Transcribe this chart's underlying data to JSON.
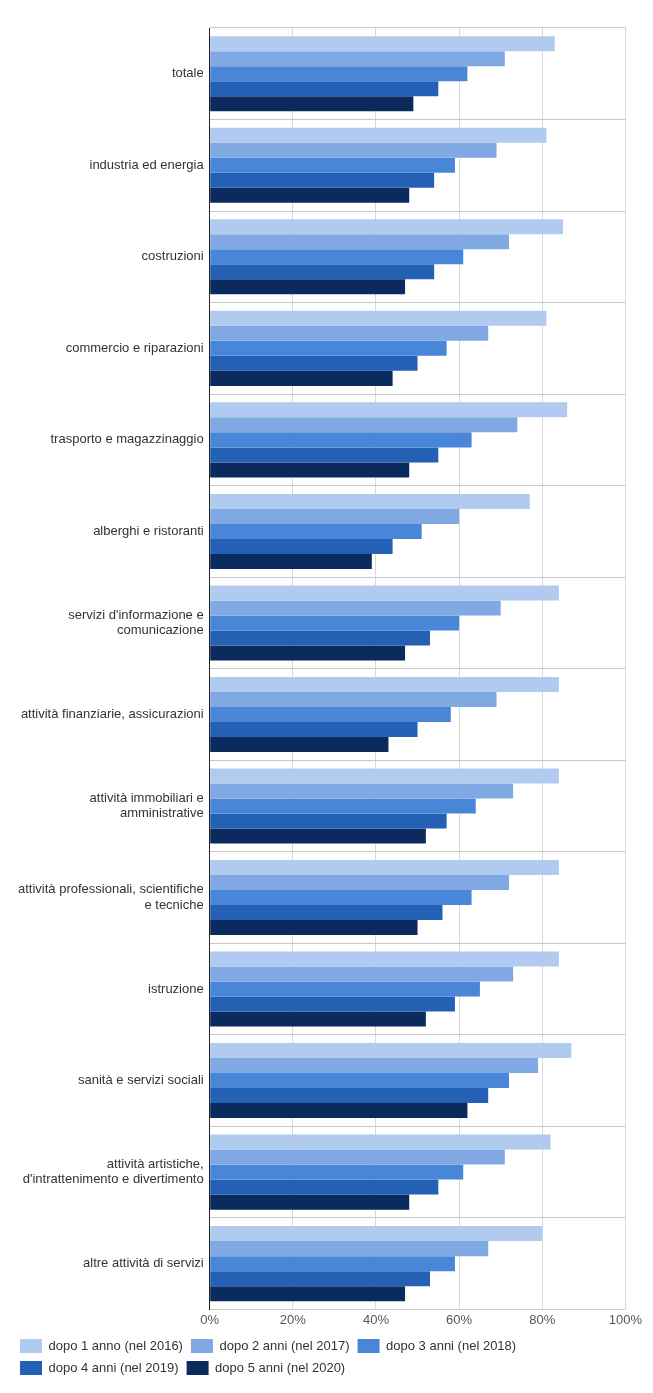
{
  "chart_data": {
    "type": "bar",
    "orientation": "horizontal",
    "categories": [
      "totale",
      "industria ed energia",
      "costruzioni",
      "commercio e riparazioni",
      "trasporto e magazzinaggio",
      "alberghi e ristoranti",
      "servizi d'informazione e comunicazione",
      "attività finanziarie, assicurazioni",
      "attività immobiliari e amministrative",
      "attività professionali, scientifiche e tecniche",
      "istruzione",
      "sanità e servizi sociali",
      "attività artistiche, d'intrattenimento e divertimento",
      "altre attività di servizi"
    ],
    "series": [
      {
        "name": "dopo 1 anno (nel 2016)",
        "color": "#b0caf0",
        "values": [
          83,
          81,
          85,
          81,
          86,
          77,
          84,
          84,
          84,
          84,
          84,
          87,
          82,
          80
        ]
      },
      {
        "name": "dopo 2 anni (nel 2017)",
        "color": "#80a9e4",
        "values": [
          71,
          69,
          72,
          67,
          74,
          60,
          70,
          69,
          73,
          72,
          73,
          79,
          71,
          67
        ]
      },
      {
        "name": "dopo 3 anni (nel 2018)",
        "color": "#4a86d8",
        "values": [
          62,
          59,
          61,
          57,
          63,
          51,
          60,
          58,
          64,
          63,
          65,
          72,
          61,
          59
        ]
      },
      {
        "name": "dopo 4 anni (nel 2019)",
        "color": "#2461b4",
        "values": [
          55,
          54,
          54,
          50,
          55,
          44,
          53,
          50,
          57,
          56,
          59,
          67,
          55,
          53
        ]
      },
      {
        "name": "dopo 5 anni (nel 2020)",
        "color": "#0b2a5e",
        "values": [
          49,
          48,
          47,
          44,
          48,
          39,
          47,
          43,
          52,
          50,
          52,
          62,
          48,
          47
        ]
      }
    ],
    "xlim": [
      0,
      100
    ],
    "xticks": [
      {
        "value": 0,
        "label": "0%"
      },
      {
        "value": 20,
        "label": "20%"
      },
      {
        "value": 40,
        "label": "40%"
      },
      {
        "value": 60,
        "label": "60%"
      },
      {
        "value": 80,
        "label": "80%"
      },
      {
        "value": 100,
        "label": "100%"
      }
    ],
    "grid": true,
    "legend": "bottom"
  }
}
